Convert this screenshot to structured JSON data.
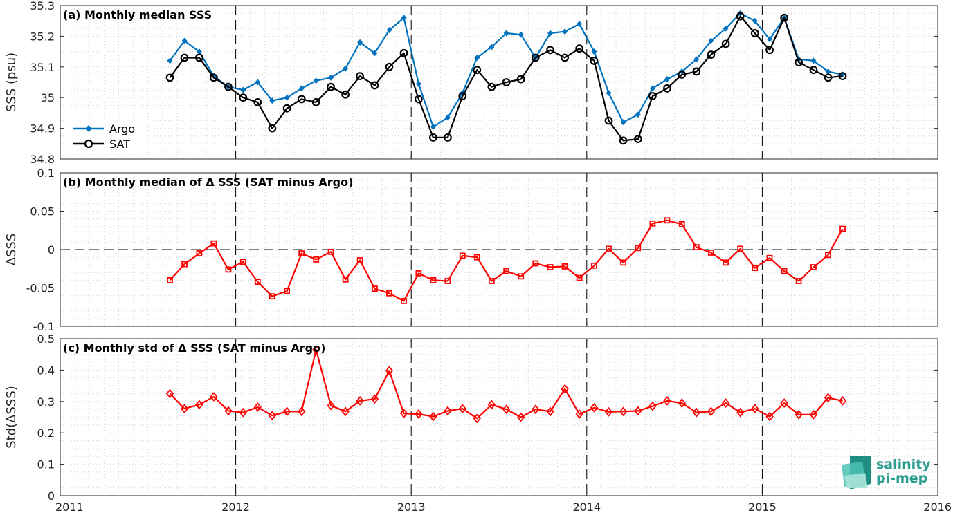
{
  "colors": {
    "argo": "#0072BD",
    "sat": "#000000",
    "delta": "#FF0000",
    "logo": "#2a9d8f"
  },
  "x_ticks": [
    "2011",
    "2012",
    "2013",
    "2014",
    "2015",
    "2016"
  ],
  "logo": {
    "line1": "salinity",
    "line2": "pi-mep"
  },
  "chart_data": [
    {
      "type": "line",
      "title": "(a) Monthly median SSS",
      "ylabel": "SSS (psu)",
      "ylim": [
        34.8,
        35.3
      ],
      "xlim": [
        2011,
        2016
      ],
      "yticks": [
        "34.8",
        "34.9",
        "35",
        "35.1",
        "35.2",
        "35.3"
      ],
      "grid": true,
      "legend_placement": "bottom-left",
      "x": [
        2011.625,
        2011.708,
        2011.792,
        2011.875,
        2011.958,
        2012.042,
        2012.125,
        2012.208,
        2012.292,
        2012.375,
        2012.458,
        2012.542,
        2012.625,
        2012.708,
        2012.792,
        2012.875,
        2012.958,
        2013.042,
        2013.125,
        2013.208,
        2013.292,
        2013.375,
        2013.458,
        2013.542,
        2013.625,
        2013.708,
        2013.792,
        2013.875,
        2013.958,
        2014.042,
        2014.125,
        2014.208,
        2014.292,
        2014.375,
        2014.458,
        2014.542,
        2014.625,
        2014.708,
        2014.792,
        2014.875,
        2014.958,
        2015.042,
        2015.125,
        2015.208,
        2015.292,
        2015.375,
        2015.458
      ],
      "series": [
        {
          "name": "Argo",
          "marker": "diamond-filled",
          "values": [
            35.12,
            35.185,
            35.15,
            35.07,
            35.035,
            35.025,
            35.05,
            34.99,
            35.0,
            35.03,
            35.055,
            35.065,
            35.095,
            35.18,
            35.145,
            35.22,
            35.26,
            35.045,
            34.905,
            34.935,
            35.015,
            35.13,
            35.165,
            35.21,
            35.205,
            35.13,
            35.21,
            35.215,
            35.24,
            35.15,
            35.015,
            34.92,
            34.945,
            35.03,
            35.06,
            35.085,
            35.125,
            35.185,
            35.225,
            35.275,
            35.25,
            35.19,
            35.26,
            35.125,
            35.12,
            35.085,
            35.075
          ]
        },
        {
          "name": "SAT",
          "marker": "circle-open",
          "values": [
            35.065,
            35.13,
            35.13,
            35.065,
            35.035,
            35.0,
            34.985,
            34.9,
            34.965,
            34.995,
            34.985,
            35.035,
            35.01,
            35.07,
            35.04,
            35.1,
            35.145,
            34.995,
            34.87,
            34.87,
            35.005,
            35.09,
            35.035,
            35.05,
            35.06,
            35.13,
            35.155,
            35.13,
            35.16,
            35.12,
            34.925,
            34.86,
            34.865,
            35.005,
            35.03,
            35.075,
            35.085,
            35.14,
            35.175,
            35.265,
            35.21,
            35.155,
            35.26,
            35.115,
            35.09,
            35.065,
            35.07
          ]
        }
      ]
    },
    {
      "type": "line",
      "title": "(b) Monthly median of Δ SSS (SAT minus Argo)",
      "ylabel": "ΔSSS",
      "ylim": [
        -0.1,
        0.1
      ],
      "xlim": [
        2011,
        2016
      ],
      "yticks": [
        "-0.1",
        "-0.05",
        "0",
        "0.05",
        "0.1"
      ],
      "grid": true,
      "x": [
        2011.625,
        2011.708,
        2011.792,
        2011.875,
        2011.958,
        2012.042,
        2012.125,
        2012.208,
        2012.292,
        2012.375,
        2012.458,
        2012.542,
        2012.625,
        2012.708,
        2012.792,
        2012.875,
        2012.958,
        2013.042,
        2013.125,
        2013.208,
        2013.292,
        2013.375,
        2013.458,
        2013.542,
        2013.625,
        2013.708,
        2013.792,
        2013.875,
        2013.958,
        2014.042,
        2014.125,
        2014.208,
        2014.292,
        2014.375,
        2014.458,
        2014.542,
        2014.625,
        2014.708,
        2014.792,
        2014.875,
        2014.958,
        2015.042,
        2015.125,
        2015.208,
        2015.292,
        2015.375,
        2015.458
      ],
      "series": [
        {
          "marker": "square-open",
          "values": [
            -0.04,
            -0.019,
            -0.005,
            0.008,
            -0.026,
            -0.016,
            -0.042,
            -0.061,
            -0.054,
            -0.005,
            -0.013,
            -0.003,
            -0.039,
            -0.014,
            -0.051,
            -0.057,
            -0.067,
            -0.031,
            -0.04,
            -0.041,
            -0.008,
            -0.01,
            -0.041,
            -0.028,
            -0.035,
            -0.018,
            -0.023,
            -0.022,
            -0.037,
            -0.021,
            0.001,
            -0.017,
            0.002,
            0.034,
            0.038,
            0.033,
            0.003,
            -0.004,
            -0.017,
            0.001,
            -0.024,
            -0.011,
            -0.028,
            -0.041,
            -0.023,
            -0.007,
            0.027
          ]
        }
      ]
    },
    {
      "type": "line",
      "title": "(c) Monthly std of Δ SSS (SAT minus Argo)",
      "ylabel": "Std(ΔSSS)",
      "ylim": [
        0,
        0.5
      ],
      "xlim": [
        2011,
        2016
      ],
      "yticks": [
        "0",
        "0.1",
        "0.2",
        "0.3",
        "0.4",
        "0.5"
      ],
      "grid": true,
      "x": [
        2011.625,
        2011.708,
        2011.792,
        2011.875,
        2011.958,
        2012.042,
        2012.125,
        2012.208,
        2012.292,
        2012.375,
        2012.458,
        2012.542,
        2012.625,
        2012.708,
        2012.792,
        2012.875,
        2012.958,
        2013.042,
        2013.125,
        2013.208,
        2013.292,
        2013.375,
        2013.458,
        2013.542,
        2013.625,
        2013.708,
        2013.792,
        2013.875,
        2013.958,
        2014.042,
        2014.125,
        2014.208,
        2014.292,
        2014.375,
        2014.458,
        2014.542,
        2014.625,
        2014.708,
        2014.792,
        2014.875,
        2014.958,
        2015.042,
        2015.125,
        2015.208,
        2015.292,
        2015.375,
        2015.458
      ],
      "series": [
        {
          "marker": "diamond-open",
          "values": [
            0.325,
            0.277,
            0.29,
            0.315,
            0.27,
            0.265,
            0.282,
            0.255,
            0.268,
            0.268,
            0.465,
            0.287,
            0.268,
            0.302,
            0.308,
            0.398,
            0.262,
            0.26,
            0.252,
            0.27,
            0.277,
            0.246,
            0.29,
            0.275,
            0.25,
            0.275,
            0.268,
            0.34,
            0.26,
            0.28,
            0.267,
            0.268,
            0.27,
            0.285,
            0.302,
            0.295,
            0.265,
            0.268,
            0.295,
            0.265,
            0.277,
            0.252,
            0.295,
            0.258,
            0.258,
            0.312,
            0.302
          ]
        }
      ]
    }
  ]
}
